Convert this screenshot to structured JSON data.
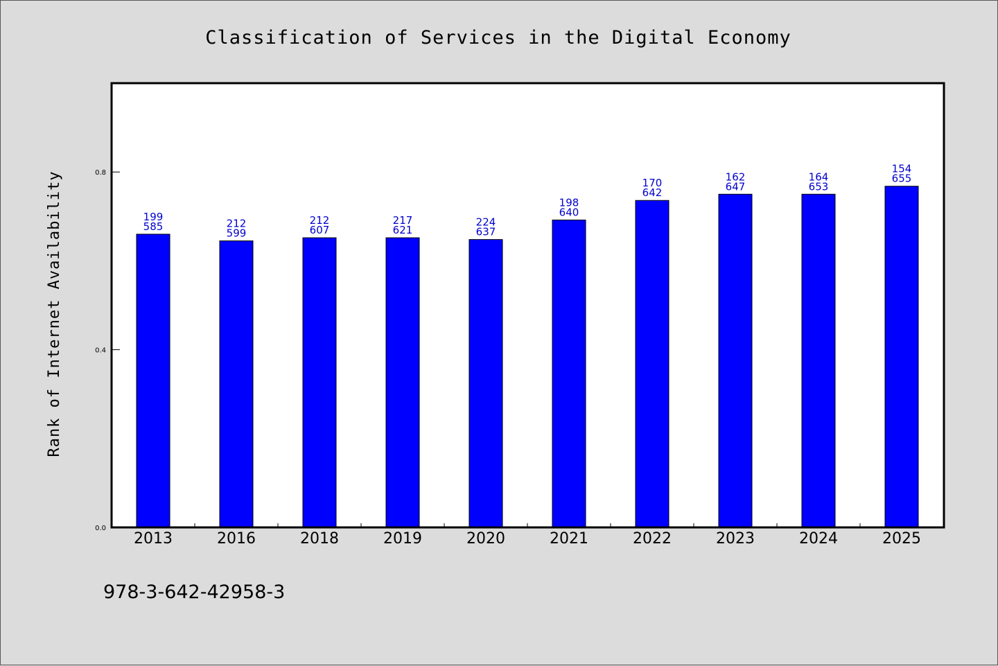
{
  "chart_data": {
    "type": "bar",
    "title": "Classification of Services in the Digital Economy",
    "xlabel": "",
    "ylabel": "Rank of Internet Availability",
    "categories": [
      "2013",
      "2016",
      "2018",
      "2019",
      "2020",
      "2021",
      "2022",
      "2023",
      "2024",
      "2025"
    ],
    "values": [
      0.66,
      0.645,
      0.652,
      0.652,
      0.648,
      0.692,
      0.736,
      0.75,
      0.75,
      0.768
    ],
    "data_labels": [
      [
        "199",
        "585"
      ],
      [
        "212",
        "599"
      ],
      [
        "212",
        "607"
      ],
      [
        "217",
        "621"
      ],
      [
        "224",
        "637"
      ],
      [
        "198",
        "640"
      ],
      [
        "170",
        "642"
      ],
      [
        "162",
        "647"
      ],
      [
        "164",
        "653"
      ],
      [
        "154",
        "655"
      ]
    ],
    "yticks": [
      "0.0",
      "0.4",
      "0.8"
    ],
    "ytick_values": [
      0.0,
      0.4,
      0.8
    ],
    "ylim": [
      0,
      1.0
    ],
    "grid": false,
    "bar_color": "#0000ff",
    "label_color": "#0000cc",
    "background_color": "#dcdcdc"
  },
  "footer": {
    "isbn": "978-3-642-42958-3"
  }
}
